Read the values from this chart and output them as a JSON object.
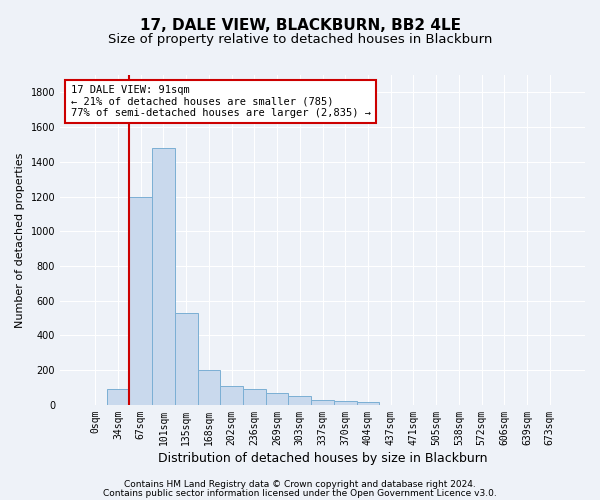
{
  "title": "17, DALE VIEW, BLACKBURN, BB2 4LE",
  "subtitle": "Size of property relative to detached houses in Blackburn",
  "xlabel": "Distribution of detached houses by size in Blackburn",
  "ylabel": "Number of detached properties",
  "bar_labels": [
    "0sqm",
    "34sqm",
    "67sqm",
    "101sqm",
    "135sqm",
    "168sqm",
    "202sqm",
    "236sqm",
    "269sqm",
    "303sqm",
    "337sqm",
    "370sqm",
    "404sqm",
    "437sqm",
    "471sqm",
    "505sqm",
    "538sqm",
    "572sqm",
    "606sqm",
    "639sqm",
    "673sqm"
  ],
  "bar_values": [
    0,
    90,
    1200,
    1480,
    530,
    200,
    110,
    90,
    70,
    50,
    30,
    20,
    15,
    0,
    0,
    0,
    0,
    0,
    0,
    0,
    0
  ],
  "bar_color": "#c9d9ed",
  "bar_edge_color": "#7bafd4",
  "vline_color": "#cc0000",
  "annotation_text": "17 DALE VIEW: 91sqm\n← 21% of detached houses are smaller (785)\n77% of semi-detached houses are larger (2,835) →",
  "annotation_box_color": "#ffffff",
  "annotation_box_edge": "#cc0000",
  "ylim": [
    0,
    1900
  ],
  "yticks": [
    0,
    200,
    400,
    600,
    800,
    1000,
    1200,
    1400,
    1600,
    1800
  ],
  "footer1": "Contains HM Land Registry data © Crown copyright and database right 2024.",
  "footer2": "Contains public sector information licensed under the Open Government Licence v3.0.",
  "bg_color": "#eef2f8",
  "plot_bg_color": "#eef2f8",
  "grid_color": "#ffffff",
  "title_fontsize": 11,
  "subtitle_fontsize": 9.5,
  "xlabel_fontsize": 9,
  "ylabel_fontsize": 8,
  "tick_fontsize": 7,
  "annotation_fontsize": 7.5,
  "footer_fontsize": 6.5,
  "vline_pos": 1.5
}
